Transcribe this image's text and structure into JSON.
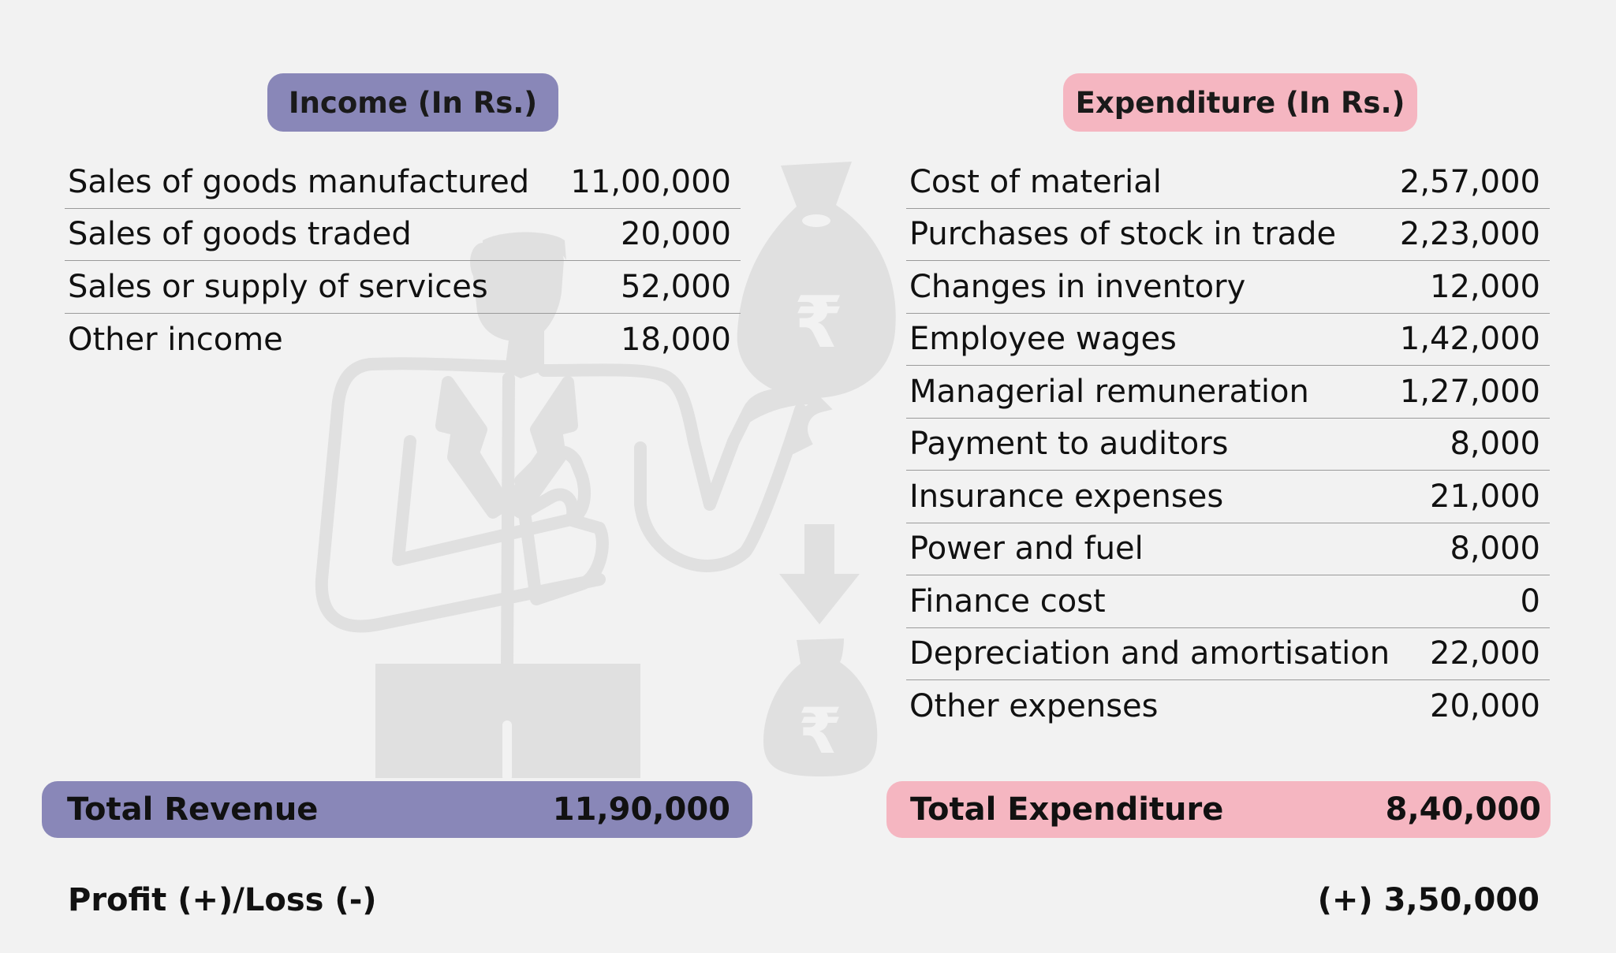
{
  "income": {
    "header": "Income (In Rs.)",
    "rows": [
      {
        "label": "Sales of goods manufactured",
        "value": "11,00,000"
      },
      {
        "label": "Sales of goods traded",
        "value": "20,000"
      },
      {
        "label": "Sales or supply of services",
        "value": "52,000"
      },
      {
        "label": "Other income",
        "value": "18,000"
      }
    ],
    "total_label": "Total Revenue",
    "total_value": "11,90,000"
  },
  "expenditure": {
    "header": "Expenditure (In Rs.)",
    "rows": [
      {
        "label": "Cost of material",
        "value": "2,57,000"
      },
      {
        "label": "Purchases of stock in trade",
        "value": "2,23,000"
      },
      {
        "label": "Changes in inventory",
        "value": "12,000"
      },
      {
        "label": "Employee wages",
        "value": "1,42,000"
      },
      {
        "label": "Managerial remuneration",
        "value": "1,27,000"
      },
      {
        "label": "Payment to auditors",
        "value": "8,000"
      },
      {
        "label": "Insurance expenses",
        "value": "21,000"
      },
      {
        "label": "Power and fuel",
        "value": "8,000"
      },
      {
        "label": "Finance cost",
        "value": "0"
      },
      {
        "label": "Depreciation and amortisation",
        "value": "22,000"
      },
      {
        "label": "Other expenses",
        "value": "20,000"
      }
    ],
    "total_label": "Total Expenditure",
    "total_value": "8,40,000"
  },
  "profit": {
    "label": "Profit (+)/Loss (-)",
    "value": "(+) 3,50,000"
  },
  "illustration": {
    "icons": [
      "businessman-icon",
      "money-bag-icon",
      "down-arrow-icon"
    ],
    "rupee_symbol": "₹",
    "color": "#e0e0e0"
  },
  "colors": {
    "income_accent": "#8987b8",
    "expenditure_accent": "#f5b6c1",
    "background": "#f2f2f2"
  }
}
